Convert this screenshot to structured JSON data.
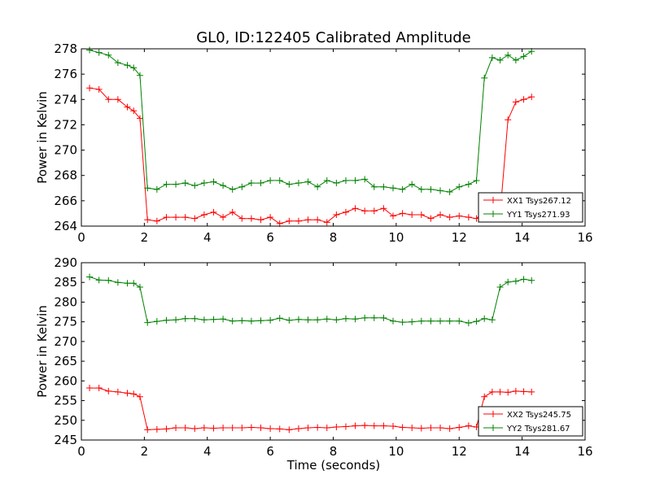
{
  "chart_data": [
    {
      "type": "line",
      "title": "GL0, ID:122405 Calibrated Amplitude",
      "xlabel": "",
      "ylabel": "Power in Kelvin",
      "xlim": [
        0,
        16
      ],
      "ylim": [
        264,
        278
      ],
      "xticks": [
        0,
        2,
        4,
        6,
        8,
        10,
        12,
        14,
        16
      ],
      "yticks": [
        264,
        266,
        268,
        270,
        272,
        274,
        276,
        278
      ],
      "grid": false,
      "legend_position": "lower-right",
      "x": [
        0.26,
        0.56,
        0.86,
        1.16,
        1.46,
        1.66,
        1.86,
        2.1,
        2.4,
        2.7,
        3.0,
        3.3,
        3.6,
        3.9,
        4.2,
        4.5,
        4.8,
        5.1,
        5.4,
        5.7,
        6.0,
        6.3,
        6.6,
        6.9,
        7.2,
        7.5,
        7.8,
        8.1,
        8.4,
        8.7,
        9.0,
        9.3,
        9.6,
        9.9,
        10.2,
        10.5,
        10.8,
        11.1,
        11.4,
        11.7,
        12.0,
        12.3,
        12.55,
        12.8,
        13.05,
        13.3,
        13.55,
        13.8,
        14.05,
        14.3
      ],
      "series": [
        {
          "name": "XX1 Tsys267.12",
          "color": "#ff0000",
          "values": [
            274.9,
            274.8,
            274.0,
            274.0,
            273.4,
            273.1,
            272.5,
            264.5,
            264.4,
            264.7,
            264.7,
            264.7,
            264.6,
            264.9,
            265.1,
            264.7,
            265.1,
            264.6,
            264.6,
            264.5,
            264.7,
            264.2,
            264.4,
            264.4,
            264.5,
            264.5,
            264.3,
            264.9,
            265.1,
            265.4,
            265.2,
            265.2,
            265.4,
            264.8,
            265.0,
            264.9,
            264.9,
            264.6,
            264.9,
            264.7,
            264.8,
            264.7,
            264.6,
            265.2,
            265.2,
            264.9,
            272.4,
            273.8,
            274.0,
            274.2
          ]
        },
        {
          "name": "YY1 Tsys271.93",
          "color": "#008000",
          "values": [
            277.9,
            277.7,
            277.5,
            276.9,
            276.7,
            276.5,
            275.9,
            267.0,
            266.9,
            267.3,
            267.3,
            267.4,
            267.2,
            267.4,
            267.5,
            267.2,
            266.9,
            267.1,
            267.4,
            267.4,
            267.6,
            267.6,
            267.3,
            267.4,
            267.5,
            267.1,
            267.6,
            267.4,
            267.6,
            267.6,
            267.7,
            267.1,
            267.1,
            267.0,
            266.9,
            267.3,
            266.9,
            266.9,
            266.8,
            266.7,
            267.1,
            267.3,
            267.6,
            275.7,
            277.3,
            277.1,
            277.5,
            277.1,
            277.4,
            277.8
          ]
        }
      ]
    },
    {
      "type": "line",
      "title": "",
      "xlabel": "Time (seconds)",
      "ylabel": "Power in Kelvin",
      "xlim": [
        0,
        16
      ],
      "ylim": [
        245,
        290
      ],
      "xticks": [
        0,
        2,
        4,
        6,
        8,
        10,
        12,
        14,
        16
      ],
      "yticks": [
        245,
        250,
        255,
        260,
        265,
        270,
        275,
        280,
        285,
        290
      ],
      "grid": false,
      "legend_position": "lower-right",
      "x": [
        0.26,
        0.56,
        0.86,
        1.16,
        1.46,
        1.66,
        1.86,
        2.1,
        2.4,
        2.7,
        3.0,
        3.3,
        3.6,
        3.9,
        4.2,
        4.5,
        4.8,
        5.1,
        5.4,
        5.7,
        6.0,
        6.3,
        6.6,
        6.9,
        7.2,
        7.5,
        7.8,
        8.1,
        8.4,
        8.7,
        9.0,
        9.3,
        9.6,
        9.9,
        10.2,
        10.5,
        10.8,
        11.1,
        11.4,
        11.7,
        12.0,
        12.3,
        12.55,
        12.8,
        13.05,
        13.3,
        13.55,
        13.8,
        14.05,
        14.3
      ],
      "series": [
        {
          "name": "XX2 Tsys245.75",
          "color": "#ff0000",
          "values": [
            258.2,
            258.2,
            257.4,
            257.2,
            256.9,
            256.7,
            256.0,
            247.6,
            247.7,
            247.8,
            248.1,
            248.1,
            247.9,
            248.1,
            248.0,
            248.1,
            248.1,
            248.1,
            248.2,
            248.1,
            247.9,
            247.8,
            247.6,
            247.9,
            248.1,
            248.2,
            248.1,
            248.3,
            248.4,
            248.6,
            248.7,
            248.6,
            248.6,
            248.5,
            248.2,
            248.1,
            248.0,
            248.1,
            248.1,
            247.9,
            248.2,
            248.6,
            248.3,
            256.0,
            257.2,
            257.2,
            257.1,
            257.4,
            257.3,
            257.2
          ]
        },
        {
          "name": "YY2 Tsys281.67",
          "color": "#008000",
          "values": [
            286.4,
            285.6,
            285.5,
            285.0,
            284.8,
            284.8,
            283.8,
            274.8,
            275.1,
            275.4,
            275.5,
            275.8,
            275.8,
            275.5,
            275.6,
            275.7,
            275.2,
            275.3,
            275.2,
            275.3,
            275.4,
            275.9,
            275.4,
            275.6,
            275.5,
            275.5,
            275.7,
            275.5,
            275.8,
            275.7,
            276.0,
            276.0,
            276.0,
            275.2,
            274.9,
            275.0,
            275.2,
            275.2,
            275.2,
            275.2,
            275.2,
            274.7,
            275.1,
            275.8,
            275.5,
            283.8,
            285.1,
            285.3,
            285.8,
            285.5
          ]
        }
      ]
    }
  ]
}
